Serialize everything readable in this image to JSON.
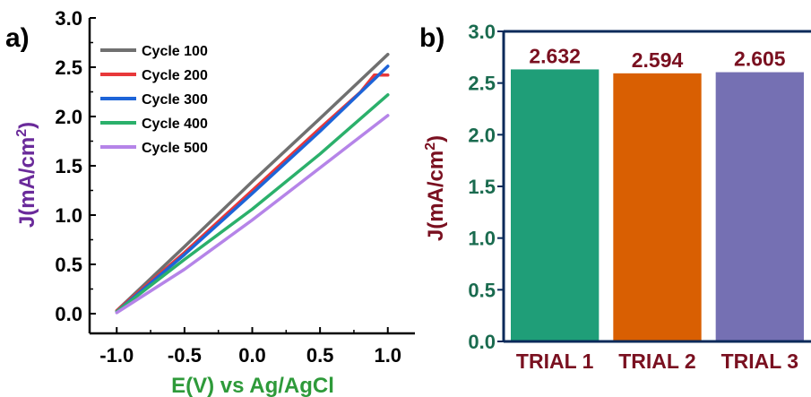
{
  "panels": {
    "a": {
      "label": "a)"
    },
    "b": {
      "label": "b)"
    }
  },
  "chart_data": [
    {
      "type": "line",
      "panel": "a",
      "xlabel": "E(V) vs Ag/AgCl",
      "ylabel": "J(mA/cm²)",
      "ylabel_parts": {
        "base": "J(mA/cm",
        "sup": "2",
        "close": ")"
      },
      "xlim": [
        -1.2,
        1.2
      ],
      "ylim": [
        -0.2,
        3.0
      ],
      "xticks": [
        -1.0,
        -0.5,
        0.0,
        0.5,
        1.0
      ],
      "xtick_labels": [
        "-1.0",
        "-0.5",
        "0.0",
        "0.5",
        "1.0"
      ],
      "yticks": [
        0.0,
        0.5,
        1.0,
        1.5,
        2.0,
        2.5,
        3.0
      ],
      "ytick_labels": [
        "0.0",
        "0.5",
        "1.0",
        "1.5",
        "2.0",
        "2.5",
        "3.0"
      ],
      "grid": false,
      "legend_position": "top-left",
      "series": [
        {
          "name": "Cycle 100",
          "color": "#707070",
          "x": [
            -1.0,
            -0.5,
            0.0,
            0.5,
            1.0
          ],
          "y": [
            0.03,
            0.68,
            1.34,
            1.98,
            2.63
          ]
        },
        {
          "name": "Cycle 200",
          "color": "#e8383a",
          "x": [
            -1.0,
            -0.5,
            0.0,
            0.5,
            0.8,
            0.9,
            1.0
          ],
          "y": [
            0.03,
            0.62,
            1.25,
            1.88,
            2.25,
            2.42,
            2.42
          ]
        },
        {
          "name": "Cycle 300",
          "color": "#1d64d8",
          "x": [
            -1.0,
            -0.5,
            0.0,
            0.5,
            1.0
          ],
          "y": [
            0.02,
            0.6,
            1.22,
            1.85,
            2.51
          ]
        },
        {
          "name": "Cycle 400",
          "color": "#2bb06b",
          "x": [
            -1.0,
            -0.5,
            0.0,
            0.5,
            1.0
          ],
          "y": [
            0.02,
            0.55,
            1.06,
            1.62,
            2.22
          ]
        },
        {
          "name": "Cycle 500",
          "color": "#b584e8",
          "x": [
            -1.0,
            -0.5,
            0.0,
            0.5,
            1.0
          ],
          "y": [
            0.01,
            0.45,
            0.95,
            1.48,
            2.01
          ]
        }
      ]
    },
    {
      "type": "bar",
      "panel": "b",
      "categories": [
        "TRIAL 1",
        "TRIAL 2",
        "TRIAL 3"
      ],
      "values": [
        2.632,
        2.594,
        2.605
      ],
      "value_labels": [
        "2.632",
        "2.594",
        "2.605"
      ],
      "colors": [
        "#1f9e78",
        "#d95f02",
        "#7570b3"
      ],
      "xlabel": "",
      "ylabel": "J(mA/cm²)",
      "ylabel_parts": {
        "base": "J(mA/cm",
        "sup": "2",
        "close": ")"
      },
      "ylim": [
        0.0,
        3.0
      ],
      "yticks": [
        0.0,
        0.5,
        1.0,
        1.5,
        2.0,
        2.5,
        3.0
      ],
      "ytick_labels": [
        "0.0",
        "0.5",
        "1.0",
        "1.5",
        "2.0",
        "2.5",
        "3.0"
      ],
      "grid": false,
      "colors_text": {
        "ticks": "#1a6b4f",
        "axis": "#0a2a5a",
        "labels": "#7a1020"
      }
    }
  ]
}
